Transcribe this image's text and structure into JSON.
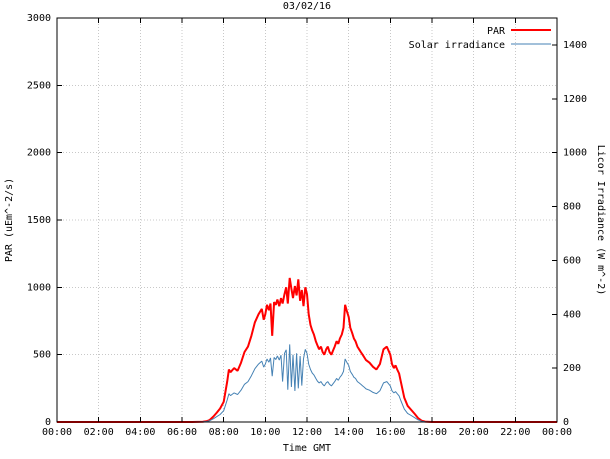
{
  "page": {
    "title": "03/02/16"
  },
  "chart_data": {
    "type": "line",
    "title": "03/02/16",
    "xlabel": "Time GMT",
    "ylabel_left": "PAR (uEm^-2/s)",
    "ylabel_right": "Licor Irradiance (W m^-2)",
    "xlim_hours": [
      0,
      24
    ],
    "xtick_interval_hours": 2,
    "xtick_labels": [
      "00:00",
      "02:00",
      "04:00",
      "06:00",
      "08:00",
      "10:00",
      "12:00",
      "14:00",
      "16:00",
      "18:00",
      "20:00",
      "22:00",
      "00:00"
    ],
    "ylim_left": [
      0,
      3000
    ],
    "yticks_left": [
      0,
      500,
      1000,
      1500,
      2000,
      2500,
      3000
    ],
    "ylim_right": [
      0,
      1500
    ],
    "yticks_right": [
      0,
      200,
      400,
      600,
      800,
      1000,
      1200,
      1400
    ],
    "grid": true,
    "legend_position": "top-right",
    "series": [
      {
        "name": "PAR",
        "color": "#ff0000",
        "axis": "left",
        "width": 2
      },
      {
        "name": "Solar irradiance",
        "color": "#4682b4",
        "axis": "right",
        "width": 1
      }
    ],
    "points": [
      [
        0,
        0,
        0
      ],
      [
        0.5,
        0,
        0
      ],
      [
        1,
        0,
        0
      ],
      [
        1.5,
        0,
        0
      ],
      [
        2,
        0,
        0
      ],
      [
        2.5,
        0,
        0
      ],
      [
        3,
        0,
        0
      ],
      [
        3.5,
        0,
        0
      ],
      [
        4,
        0,
        0
      ],
      [
        4.5,
        0,
        0
      ],
      [
        5,
        0,
        0
      ],
      [
        5.5,
        0,
        0
      ],
      [
        6,
        0,
        0
      ],
      [
        6.5,
        0,
        0
      ],
      [
        7,
        2,
        1
      ],
      [
        7.17,
        5,
        2
      ],
      [
        7.33,
        15,
        5
      ],
      [
        7.5,
        40,
        12
      ],
      [
        7.67,
        70,
        20
      ],
      [
        7.83,
        100,
        28
      ],
      [
        8,
        150,
        42
      ],
      [
        8.17,
        300,
        82
      ],
      [
        8.25,
        390,
        105
      ],
      [
        8.33,
        370,
        98
      ],
      [
        8.5,
        400,
        108
      ],
      [
        8.67,
        380,
        102
      ],
      [
        8.83,
        440,
        118
      ],
      [
        9,
        520,
        140
      ],
      [
        9.17,
        560,
        150
      ],
      [
        9.33,
        640,
        172
      ],
      [
        9.5,
        740,
        198
      ],
      [
        9.67,
        800,
        215
      ],
      [
        9.83,
        840,
        226
      ],
      [
        9.92,
        760,
        204
      ],
      [
        10,
        800,
        215
      ],
      [
        10.08,
        870,
        234
      ],
      [
        10.17,
        830,
        222
      ],
      [
        10.25,
        880,
        238
      ],
      [
        10.33,
        640,
        170
      ],
      [
        10.42,
        890,
        240
      ],
      [
        10.5,
        870,
        232
      ],
      [
        10.58,
        910,
        245
      ],
      [
        10.67,
        860,
        230
      ],
      [
        10.75,
        920,
        248
      ],
      [
        10.83,
        880,
        150
      ],
      [
        10.92,
        950,
        255
      ],
      [
        11,
        1000,
        268
      ],
      [
        11.08,
        880,
        120
      ],
      [
        11.17,
        1070,
        288
      ],
      [
        11.25,
        990,
        130
      ],
      [
        11.33,
        920,
        250
      ],
      [
        11.42,
        1010,
        115
      ],
      [
        11.5,
        940,
        255
      ],
      [
        11.58,
        1060,
        125
      ],
      [
        11.67,
        900,
        245
      ],
      [
        11.75,
        980,
        135
      ],
      [
        11.83,
        860,
        235
      ],
      [
        11.92,
        1000,
        270
      ],
      [
        12,
        950,
        255
      ],
      [
        12.08,
        800,
        215
      ],
      [
        12.17,
        720,
        195
      ],
      [
        12.25,
        680,
        182
      ],
      [
        12.33,
        650,
        175
      ],
      [
        12.42,
        600,
        162
      ],
      [
        12.5,
        570,
        152
      ],
      [
        12.58,
        540,
        145
      ],
      [
        12.67,
        560,
        150
      ],
      [
        12.75,
        520,
        140
      ],
      [
        12.83,
        500,
        134
      ],
      [
        12.92,
        540,
        145
      ],
      [
        13,
        560,
        150
      ],
      [
        13.08,
        520,
        140
      ],
      [
        13.17,
        500,
        134
      ],
      [
        13.25,
        530,
        142
      ],
      [
        13.33,
        560,
        150
      ],
      [
        13.42,
        600,
        162
      ],
      [
        13.5,
        580,
        155
      ],
      [
        13.58,
        620,
        166
      ],
      [
        13.67,
        650,
        175
      ],
      [
        13.75,
        700,
        188
      ],
      [
        13.83,
        870,
        234
      ],
      [
        13.92,
        820,
        220
      ],
      [
        14,
        780,
        210
      ],
      [
        14.08,
        700,
        188
      ],
      [
        14.17,
        660,
        177
      ],
      [
        14.25,
        620,
        166
      ],
      [
        14.33,
        600,
        162
      ],
      [
        14.42,
        560,
        150
      ],
      [
        14.5,
        540,
        145
      ],
      [
        14.58,
        520,
        140
      ],
      [
        14.67,
        500,
        134
      ],
      [
        14.75,
        480,
        129
      ],
      [
        14.83,
        460,
        123
      ],
      [
        15,
        440,
        118
      ],
      [
        15.17,
        410,
        110
      ],
      [
        15.33,
        390,
        105
      ],
      [
        15.5,
        430,
        116
      ],
      [
        15.67,
        540,
        145
      ],
      [
        15.83,
        560,
        150
      ],
      [
        16,
        500,
        134
      ],
      [
        16.08,
        430,
        116
      ],
      [
        16.17,
        400,
        108
      ],
      [
        16.25,
        420,
        113
      ],
      [
        16.33,
        390,
        105
      ],
      [
        16.42,
        360,
        97
      ],
      [
        16.5,
        300,
        80
      ],
      [
        16.67,
        180,
        48
      ],
      [
        16.83,
        120,
        32
      ],
      [
        17,
        90,
        24
      ],
      [
        17.17,
        60,
        16
      ],
      [
        17.33,
        30,
        8
      ],
      [
        17.5,
        10,
        3
      ],
      [
        17.67,
        3,
        1
      ],
      [
        18,
        0,
        0
      ],
      [
        18.5,
        0,
        0
      ],
      [
        19,
        0,
        0
      ],
      [
        20,
        0,
        0
      ],
      [
        21,
        0,
        0
      ],
      [
        22,
        0,
        0
      ],
      [
        23,
        0,
        0
      ],
      [
        24,
        0,
        0
      ]
    ]
  }
}
